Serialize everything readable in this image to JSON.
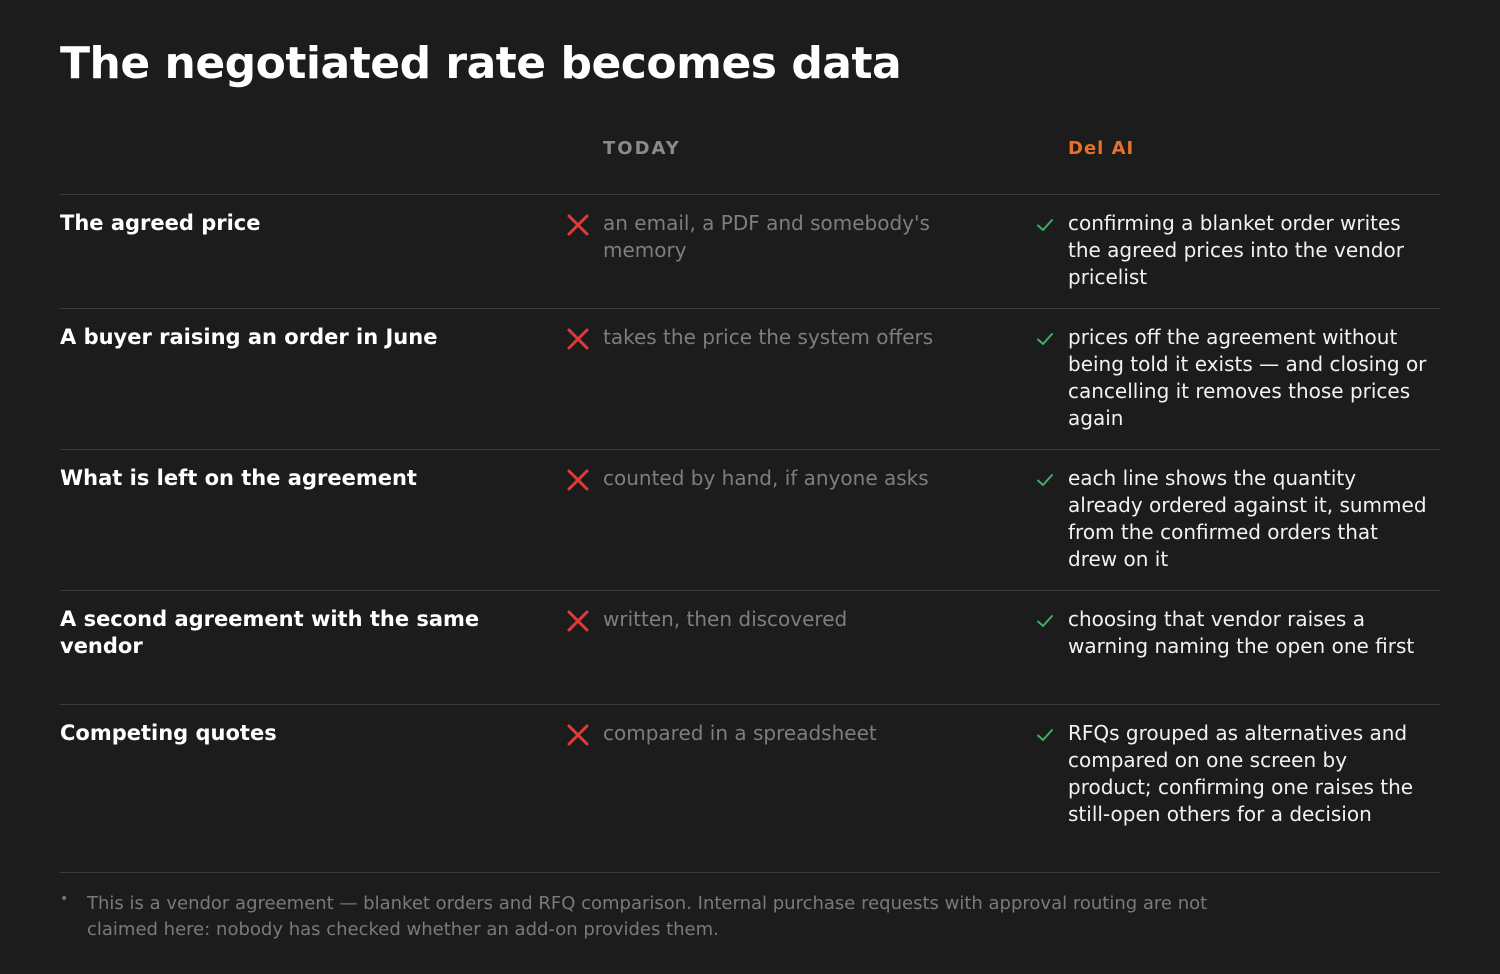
{
  "title": "The negotiated rate becomes data",
  "columns": {
    "today": "TODAY",
    "delai": "Del AI"
  },
  "rows": [
    {
      "label": "The agreed price",
      "today": "an email, a PDF and somebody's memory",
      "delai": "confirming a blanket order writes the agreed prices into the vendor pricelist"
    },
    {
      "label": "A buyer raising an order in June",
      "today": "takes the price the system offers",
      "delai": "prices off the agreement without being told it exists — and closing or cancelling it removes those prices again"
    },
    {
      "label": "What is left on the agreement",
      "today": "counted by hand, if anyone asks",
      "delai": "each line shows the quantity already ordered against it, summed from the confirmed orders that drew on it"
    },
    {
      "label": "A second agreement with the same vendor",
      "today": "written, then discovered",
      "delai": "choosing that vendor raises a warning naming the open one first"
    },
    {
      "label": "Competing quotes",
      "today": "compared in a spreadsheet",
      "delai": "RFQs grouped as alternatives and compared on one screen by product; confirming one raises the still-open others for a decision"
    }
  ],
  "footnote": {
    "bullet": "•",
    "text": "This is a vendor agreement — blanket orders and RFQ comparison. Internal purchase requests with approval routing are not claimed here: nobody has checked whether an add-on provides them."
  },
  "colors": {
    "background": "#1c1c1c",
    "accent": "#e8702a",
    "cross": "#e03a3a",
    "check": "#3fae6a",
    "muted": "#7e7e7e"
  },
  "icons": {
    "today": "cross-icon",
    "delai": "check-icon"
  }
}
